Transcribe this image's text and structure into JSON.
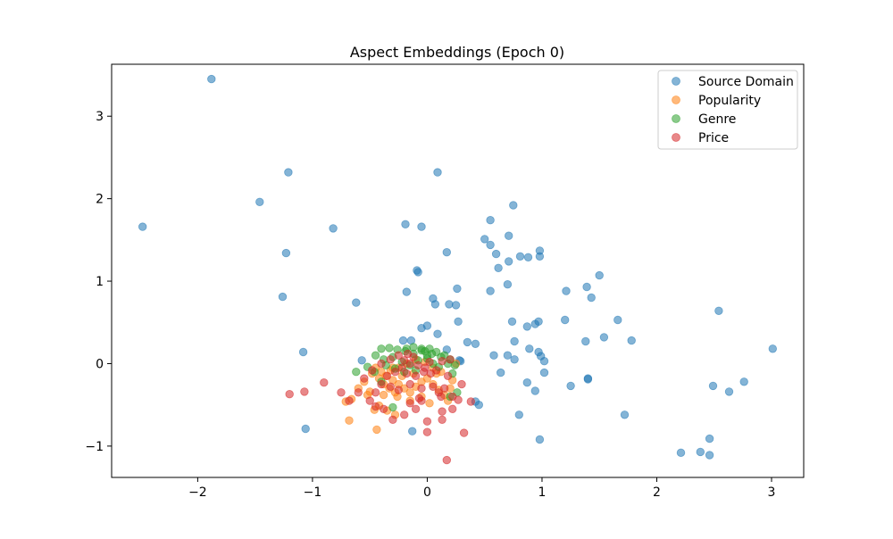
{
  "chart_data": {
    "type": "scatter",
    "title": "Aspect Embeddings (Epoch 0)",
    "xlabel": "",
    "ylabel": "",
    "xlim": [
      -2.75,
      3.28
    ],
    "ylim": [
      -1.38,
      3.63
    ],
    "x_ticks": [
      -2,
      -1,
      0,
      1,
      2,
      3
    ],
    "y_ticks": [
      -1,
      0,
      1,
      2,
      3
    ],
    "x_tick_labels": [
      "−2",
      "−1",
      "0",
      "1",
      "2",
      "3"
    ],
    "y_tick_labels": [
      "−1",
      "0",
      "1",
      "2",
      "3"
    ],
    "grid": false,
    "legend_position": "top-right",
    "marker_alpha": 0.55,
    "series": [
      {
        "name": "Source Domain",
        "color": "#1f77b4",
        "points": [
          [
            -1.88,
            3.45
          ],
          [
            -2.48,
            1.66
          ],
          [
            -1.21,
            2.32
          ],
          [
            -1.46,
            1.96
          ],
          [
            -1.23,
            1.34
          ],
          [
            -0.82,
            1.64
          ],
          [
            -1.26,
            0.81
          ],
          [
            -0.62,
            0.74
          ],
          [
            -1.08,
            0.14
          ],
          [
            -1.06,
            -0.79
          ],
          [
            0.09,
            2.32
          ],
          [
            -0.19,
            1.69
          ],
          [
            -0.05,
            1.66
          ],
          [
            0.17,
            1.35
          ],
          [
            -0.09,
            1.13
          ],
          [
            -0.08,
            1.11
          ],
          [
            -0.18,
            0.87
          ],
          [
            0.05,
            0.79
          ],
          [
            0.07,
            0.72
          ],
          [
            0.19,
            0.72
          ],
          [
            0.25,
            0.71
          ],
          [
            0.26,
            0.91
          ],
          [
            0.27,
            0.51
          ],
          [
            -0.05,
            0.43
          ],
          [
            0.0,
            0.46
          ],
          [
            0.09,
            0.36
          ],
          [
            -0.21,
            0.28
          ],
          [
            -0.14,
            0.28
          ],
          [
            0.35,
            0.26
          ],
          [
            0.42,
            0.24
          ],
          [
            0.17,
            0.17
          ],
          [
            0.28,
            0.04
          ],
          [
            0.29,
            0.03
          ],
          [
            0.42,
            -0.46
          ],
          [
            0.45,
            -0.5
          ],
          [
            -0.13,
            -0.82
          ],
          [
            -0.57,
            0.04
          ],
          [
            0.75,
            1.92
          ],
          [
            0.55,
            1.74
          ],
          [
            0.55,
            1.44
          ],
          [
            0.5,
            1.51
          ],
          [
            0.71,
            1.55
          ],
          [
            0.6,
            1.33
          ],
          [
            0.62,
            1.16
          ],
          [
            0.71,
            1.24
          ],
          [
            0.81,
            1.3
          ],
          [
            0.88,
            1.29
          ],
          [
            0.98,
            1.37
          ],
          [
            0.98,
            1.3
          ],
          [
            0.7,
            0.96
          ],
          [
            0.55,
            0.88
          ],
          [
            0.74,
            0.51
          ],
          [
            0.87,
            0.45
          ],
          [
            0.94,
            0.48
          ],
          [
            0.97,
            0.51
          ],
          [
            0.76,
            0.27
          ],
          [
            0.89,
            0.18
          ],
          [
            0.97,
            0.14
          ],
          [
            0.99,
            0.09
          ],
          [
            1.02,
            0.03
          ],
          [
            0.58,
            0.1
          ],
          [
            0.7,
            0.1
          ],
          [
            0.76,
            0.05
          ],
          [
            0.64,
            -0.11
          ],
          [
            1.02,
            -0.11
          ],
          [
            0.87,
            -0.23
          ],
          [
            0.94,
            -0.33
          ],
          [
            0.8,
            -0.62
          ],
          [
            0.98,
            -0.92
          ],
          [
            1.5,
            1.07
          ],
          [
            1.21,
            0.88
          ],
          [
            1.39,
            0.93
          ],
          [
            1.43,
            0.8
          ],
          [
            1.2,
            0.53
          ],
          [
            1.66,
            0.53
          ],
          [
            1.38,
            0.27
          ],
          [
            1.54,
            0.32
          ],
          [
            1.78,
            0.28
          ],
          [
            1.25,
            -0.27
          ],
          [
            1.4,
            -0.18
          ],
          [
            1.4,
            -0.19
          ],
          [
            1.72,
            -0.62
          ],
          [
            2.54,
            0.64
          ],
          [
            3.01,
            0.18
          ],
          [
            2.49,
            -0.27
          ],
          [
            2.63,
            -0.34
          ],
          [
            2.76,
            -0.22
          ],
          [
            2.46,
            -0.91
          ],
          [
            2.21,
            -1.08
          ],
          [
            2.38,
            -1.07
          ],
          [
            2.46,
            -1.11
          ]
        ]
      },
      {
        "name": "Popularity",
        "color": "#ff7f0e",
        "points": [
          [
            -0.68,
            -0.69
          ],
          [
            -0.44,
            -0.8
          ],
          [
            -0.71,
            -0.46
          ],
          [
            -0.66,
            -0.43
          ],
          [
            -0.52,
            -0.38
          ],
          [
            -0.5,
            -0.34
          ],
          [
            -0.46,
            -0.56
          ],
          [
            -0.42,
            -0.51
          ],
          [
            -0.35,
            -0.57
          ],
          [
            -0.28,
            -0.62
          ],
          [
            -0.45,
            -0.05
          ],
          [
            -0.4,
            -0.1
          ],
          [
            -0.36,
            -0.15
          ],
          [
            -0.3,
            -0.2
          ],
          [
            -0.25,
            -0.25
          ],
          [
            -0.2,
            -0.3
          ],
          [
            -0.33,
            -0.3
          ],
          [
            -0.28,
            -0.35
          ],
          [
            -0.38,
            -0.25
          ],
          [
            -0.42,
            -0.18
          ],
          [
            -0.48,
            -0.12
          ],
          [
            -0.15,
            -0.35
          ],
          [
            -0.1,
            -0.28
          ],
          [
            -0.05,
            -0.22
          ],
          [
            0.0,
            -0.18
          ],
          [
            0.05,
            -0.25
          ],
          [
            0.1,
            -0.32
          ],
          [
            0.15,
            -0.38
          ],
          [
            0.2,
            -0.3
          ],
          [
            0.22,
            -0.2
          ],
          [
            0.12,
            -0.1
          ],
          [
            0.05,
            -0.05
          ],
          [
            -0.02,
            0.02
          ],
          [
            -0.1,
            0.05
          ],
          [
            -0.18,
            0.0
          ],
          [
            -0.25,
            -0.05
          ],
          [
            -0.32,
            -0.08
          ],
          [
            -0.22,
            -0.15
          ],
          [
            -0.12,
            -0.12
          ],
          [
            0.08,
            -0.12
          ],
          [
            -0.05,
            -0.4
          ],
          [
            -0.15,
            -0.45
          ],
          [
            -0.26,
            -0.4
          ],
          [
            0.02,
            -0.48
          ],
          [
            0.18,
            -0.45
          ],
          [
            -0.38,
            -0.38
          ],
          [
            -0.55,
            -0.22
          ],
          [
            -0.6,
            -0.3
          ],
          [
            -0.3,
            -0.05
          ],
          [
            0.25,
            0.0
          ]
        ]
      },
      {
        "name": "Genre",
        "color": "#2ca02c",
        "points": [
          [
            -0.4,
            0.18
          ],
          [
            -0.33,
            0.19
          ],
          [
            -0.26,
            0.17
          ],
          [
            -0.19,
            0.15
          ],
          [
            -0.12,
            0.12
          ],
          [
            -0.05,
            0.16
          ],
          [
            0.02,
            0.18
          ],
          [
            0.08,
            0.14
          ],
          [
            0.15,
            0.1
          ],
          [
            0.2,
            0.05
          ],
          [
            -0.45,
            0.1
          ],
          [
            -0.38,
            0.05
          ],
          [
            -0.3,
            0.08
          ],
          [
            -0.22,
            0.02
          ],
          [
            -0.15,
            -0.02
          ],
          [
            -0.08,
            0.04
          ],
          [
            0.0,
            0.06
          ],
          [
            0.05,
            0.0
          ],
          [
            0.1,
            -0.04
          ],
          [
            -0.52,
            -0.04
          ],
          [
            -0.46,
            -0.1
          ],
          [
            -0.36,
            -0.02
          ],
          [
            -0.28,
            -0.06
          ],
          [
            -0.2,
            -0.1
          ],
          [
            -0.1,
            -0.08
          ],
          [
            0.12,
            0.08
          ],
          [
            0.18,
            0.0
          ],
          [
            0.24,
            -0.02
          ],
          [
            0.26,
            -0.35
          ],
          [
            0.2,
            -0.4
          ],
          [
            -0.62,
            -0.1
          ],
          [
            -0.3,
            -0.53
          ],
          [
            -0.05,
            0.18
          ],
          [
            -0.02,
            0.15
          ],
          [
            0.04,
            0.12
          ],
          [
            -0.18,
            0.18
          ],
          [
            0.22,
            -0.12
          ],
          [
            -0.4,
            -0.22
          ],
          [
            -0.12,
            0.2
          ],
          [
            0.0,
            0.1
          ]
        ]
      },
      {
        "name": "Price",
        "color": "#d62728",
        "points": [
          [
            -0.17,
            0.12
          ],
          [
            -0.12,
            0.08
          ],
          [
            -0.2,
            0.04
          ],
          [
            -0.15,
            0.0
          ],
          [
            -0.08,
            -0.02
          ],
          [
            -0.22,
            -0.05
          ],
          [
            -0.28,
            -0.1
          ],
          [
            -0.18,
            -0.12
          ],
          [
            -0.1,
            -0.15
          ],
          [
            -0.03,
            -0.1
          ],
          [
            0.03,
            -0.12
          ],
          [
            0.08,
            -0.08
          ],
          [
            -0.35,
            -0.15
          ],
          [
            -0.4,
            -0.25
          ],
          [
            -0.32,
            -0.28
          ],
          [
            -0.25,
            -0.32
          ],
          [
            -0.15,
            -0.25
          ],
          [
            -0.05,
            -0.3
          ],
          [
            0.05,
            -0.28
          ],
          [
            0.1,
            -0.35
          ],
          [
            0.15,
            -0.3
          ],
          [
            0.12,
            -0.4
          ],
          [
            0.22,
            -0.4
          ],
          [
            0.27,
            -0.44
          ],
          [
            0.3,
            -0.25
          ],
          [
            0.18,
            -0.15
          ],
          [
            0.13,
            0.03
          ],
          [
            0.2,
            0.05
          ],
          [
            -0.45,
            -0.35
          ],
          [
            -0.5,
            -0.45
          ],
          [
            -0.45,
            -0.52
          ],
          [
            -0.38,
            -0.55
          ],
          [
            -0.3,
            -0.68
          ],
          [
            -0.2,
            -0.62
          ],
          [
            -0.1,
            -0.55
          ],
          [
            -0.05,
            -0.45
          ],
          [
            0.0,
            -0.7
          ],
          [
            0.0,
            -0.83
          ],
          [
            0.13,
            -0.58
          ],
          [
            0.13,
            -0.68
          ],
          [
            0.22,
            -0.55
          ],
          [
            0.32,
            -0.84
          ],
          [
            0.17,
            -1.17
          ],
          [
            0.38,
            -0.46
          ],
          [
            -0.6,
            -0.35
          ],
          [
            -0.68,
            -0.45
          ],
          [
            -0.75,
            -0.35
          ],
          [
            -0.9,
            -0.23
          ],
          [
            -1.07,
            -0.34
          ],
          [
            -1.2,
            -0.37
          ],
          [
            -0.55,
            -0.18
          ],
          [
            -0.48,
            -0.08
          ],
          [
            -0.4,
            0.0
          ],
          [
            -0.32,
            0.05
          ],
          [
            -0.25,
            0.1
          ],
          [
            0.02,
            0.02
          ],
          [
            -0.02,
            -0.05
          ],
          [
            -0.07,
            -0.42
          ],
          [
            -0.15,
            -0.48
          ]
        ]
      }
    ]
  }
}
